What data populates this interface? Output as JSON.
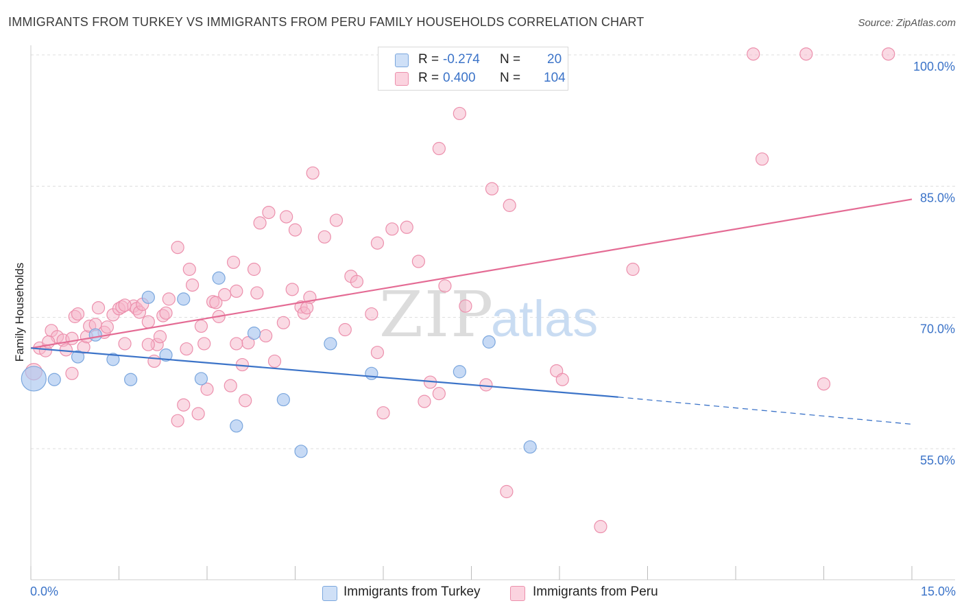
{
  "title": "IMMIGRANTS FROM TURKEY VS IMMIGRANTS FROM PERU FAMILY HOUSEHOLDS CORRELATION CHART",
  "source": "Source: ZipAtlas.com",
  "watermark": {
    "zip": "ZIP",
    "atlas": "atlas"
  },
  "legend": {
    "rows": [
      {
        "r_label": "R =",
        "r_value": "-0.274",
        "n_label": "N =",
        "n_value": "20",
        "color": "#a9c6ef"
      },
      {
        "r_label": "R =",
        "r_value": "0.400",
        "n_label": "N =",
        "n_value": "104",
        "color": "#f6b6c9"
      }
    ]
  },
  "bottom_legend": [
    {
      "label": "Immigrants from Turkey",
      "color": "#a9c6ef"
    },
    {
      "label": "Immigrants from Peru",
      "color": "#f6b6c9"
    }
  ],
  "x_tick_labels": {
    "min": "0.0%",
    "max": "15.0%"
  },
  "colors": {
    "turkey_fill": "#a9c6ef",
    "turkey_stroke": "#7aa6dd",
    "turkey_line": "#3b73c8",
    "peru_fill": "#f6b6c9",
    "peru_stroke": "#ec8fac",
    "peru_line": "#e46b94",
    "tick_text": "#3b73c8",
    "grid": "#dddddd"
  },
  "chart_data": {
    "type": "scatter",
    "title": "IMMIGRANTS FROM TURKEY VS IMMIGRANTS FROM PERU FAMILY HOUSEHOLDS CORRELATION CHART",
    "xlabel": "",
    "ylabel": "Family Households",
    "xlim": [
      0,
      15
    ],
    "ylim": [
      40,
      102
    ],
    "y_ticks": [
      {
        "value": 55,
        "label": "55.0%"
      },
      {
        "value": 70,
        "label": "70.0%"
      },
      {
        "value": 85,
        "label": "85.0%"
      },
      {
        "value": 100,
        "label": "100.0%"
      }
    ],
    "grid": "horizontal dashed",
    "series": [
      {
        "name": "Immigrants from Turkey",
        "R": -0.274,
        "N": 20,
        "points": [
          [
            0.05,
            63.0,
            18
          ],
          [
            0.4,
            62.9,
            9
          ],
          [
            0.8,
            65.5,
            9
          ],
          [
            1.1,
            68.0,
            9
          ],
          [
            1.4,
            65.2,
            9
          ],
          [
            1.7,
            62.9,
            9
          ],
          [
            2.0,
            72.3,
            9
          ],
          [
            2.3,
            65.7,
            9
          ],
          [
            2.6,
            72.1,
            9
          ],
          [
            2.9,
            63.0,
            9
          ],
          [
            3.2,
            74.5,
            9
          ],
          [
            3.5,
            57.6,
            9
          ],
          [
            3.8,
            68.2,
            9
          ],
          [
            4.3,
            60.6,
            9
          ],
          [
            4.6,
            54.7,
            9
          ],
          [
            5.1,
            67.0,
            9
          ],
          [
            5.8,
            63.6,
            9
          ],
          [
            7.3,
            63.8,
            9
          ],
          [
            7.8,
            67.2,
            9
          ],
          [
            8.5,
            55.2,
            9
          ]
        ],
        "trend": {
          "x": [
            0,
            10.0
          ],
          "y": [
            66.5,
            60.9
          ],
          "dashed_to": [
            15,
            57.8
          ]
        }
      },
      {
        "name": "Immigrants from Peru",
        "R": 0.4,
        "N": 104,
        "points": [
          [
            0.05,
            63.8,
            12
          ],
          [
            0.15,
            66.5,
            9
          ],
          [
            0.25,
            66.2,
            9
          ],
          [
            0.35,
            68.5,
            9
          ],
          [
            0.45,
            67.8,
            9
          ],
          [
            0.55,
            67.4,
            9
          ],
          [
            0.6,
            66.3,
            9
          ],
          [
            0.7,
            63.6,
            9
          ],
          [
            0.7,
            67.6,
            9
          ],
          [
            0.75,
            70.1,
            9
          ],
          [
            0.8,
            70.4,
            9
          ],
          [
            0.9,
            66.6,
            9
          ],
          [
            0.95,
            67.8,
            9
          ],
          [
            1.0,
            69.0,
            9
          ],
          [
            1.1,
            69.2,
            9
          ],
          [
            1.15,
            71.1,
            9
          ],
          [
            1.25,
            68.3,
            9
          ],
          [
            1.3,
            68.9,
            9
          ],
          [
            1.4,
            70.3,
            9
          ],
          [
            1.5,
            71.0,
            9
          ],
          [
            1.55,
            71.2,
            9
          ],
          [
            1.6,
            67.0,
            9
          ],
          [
            1.75,
            71.3,
            9
          ],
          [
            1.8,
            71.0,
            9
          ],
          [
            1.85,
            70.6,
            9
          ],
          [
            1.9,
            71.5,
            9
          ],
          [
            2.0,
            69.5,
            9
          ],
          [
            2.1,
            65.0,
            9
          ],
          [
            2.15,
            66.9,
            9
          ],
          [
            2.2,
            67.8,
            9
          ],
          [
            2.25,
            70.2,
            9
          ],
          [
            2.3,
            70.5,
            9
          ],
          [
            2.35,
            72.1,
            9
          ],
          [
            2.5,
            78.0,
            9
          ],
          [
            2.5,
            58.2,
            9
          ],
          [
            2.6,
            60.0,
            9
          ],
          [
            2.65,
            66.4,
            9
          ],
          [
            2.7,
            75.5,
            9
          ],
          [
            2.75,
            73.7,
            9
          ],
          [
            2.85,
            59.0,
            9
          ],
          [
            2.9,
            69.0,
            9
          ],
          [
            2.95,
            67.0,
            9
          ],
          [
            3.0,
            61.8,
            9
          ],
          [
            3.1,
            71.8,
            9
          ],
          [
            3.15,
            71.7,
            9
          ],
          [
            3.2,
            70.1,
            9
          ],
          [
            3.3,
            72.6,
            9
          ],
          [
            3.4,
            62.2,
            9
          ],
          [
            3.45,
            76.3,
            9
          ],
          [
            3.5,
            73.0,
            9
          ],
          [
            3.6,
            64.6,
            9
          ],
          [
            3.65,
            60.5,
            9
          ],
          [
            3.7,
            67.1,
            9
          ],
          [
            3.8,
            75.5,
            9
          ],
          [
            3.85,
            72.8,
            9
          ],
          [
            3.9,
            80.8,
            9
          ],
          [
            4.0,
            67.9,
            9
          ],
          [
            4.05,
            82.0,
            9
          ],
          [
            4.15,
            65.0,
            9
          ],
          [
            4.3,
            69.4,
            9
          ],
          [
            4.35,
            81.5,
            9
          ],
          [
            4.45,
            73.2,
            9
          ],
          [
            4.5,
            80.0,
            9
          ],
          [
            4.6,
            71.2,
            9
          ],
          [
            4.65,
            70.5,
            9
          ],
          [
            4.7,
            71.1,
            9
          ],
          [
            4.75,
            72.3,
            9
          ],
          [
            4.8,
            86.5,
            9
          ],
          [
            5.0,
            79.2,
            9
          ],
          [
            5.2,
            81.1,
            9
          ],
          [
            5.35,
            68.6,
            9
          ],
          [
            5.45,
            74.7,
            9
          ],
          [
            5.55,
            74.1,
            9
          ],
          [
            5.8,
            70.4,
            9
          ],
          [
            5.9,
            78.5,
            9
          ],
          [
            5.9,
            66.0,
            9
          ],
          [
            6.0,
            59.1,
            9
          ],
          [
            6.15,
            80.1,
            9
          ],
          [
            6.4,
            80.3,
            9
          ],
          [
            6.6,
            76.4,
            9
          ],
          [
            6.7,
            60.4,
            9
          ],
          [
            6.8,
            62.6,
            9
          ],
          [
            6.95,
            61.3,
            9
          ],
          [
            6.95,
            89.3,
            9
          ],
          [
            7.05,
            73.6,
            9
          ],
          [
            7.3,
            93.3,
            9
          ],
          [
            7.4,
            71.3,
            9
          ],
          [
            7.75,
            62.3,
            9
          ],
          [
            7.85,
            84.7,
            9
          ],
          [
            8.1,
            50.1,
            9
          ],
          [
            8.15,
            82.8,
            9
          ],
          [
            8.95,
            63.9,
            9
          ],
          [
            9.05,
            62.9,
            9
          ],
          [
            9.7,
            46.1,
            9
          ],
          [
            10.25,
            75.5,
            9
          ],
          [
            12.3,
            100.1,
            9
          ],
          [
            12.45,
            88.1,
            9
          ],
          [
            13.2,
            100.1,
            9
          ],
          [
            13.5,
            62.4,
            9
          ],
          [
            14.6,
            100.1,
            9
          ],
          [
            0.3,
            67.2,
            9
          ],
          [
            1.6,
            71.4,
            9
          ],
          [
            3.5,
            67.0,
            9
          ],
          [
            2.0,
            66.9,
            9
          ]
        ],
        "trend": {
          "x": [
            0,
            15
          ],
          "y": [
            66.5,
            83.5
          ]
        }
      }
    ]
  }
}
